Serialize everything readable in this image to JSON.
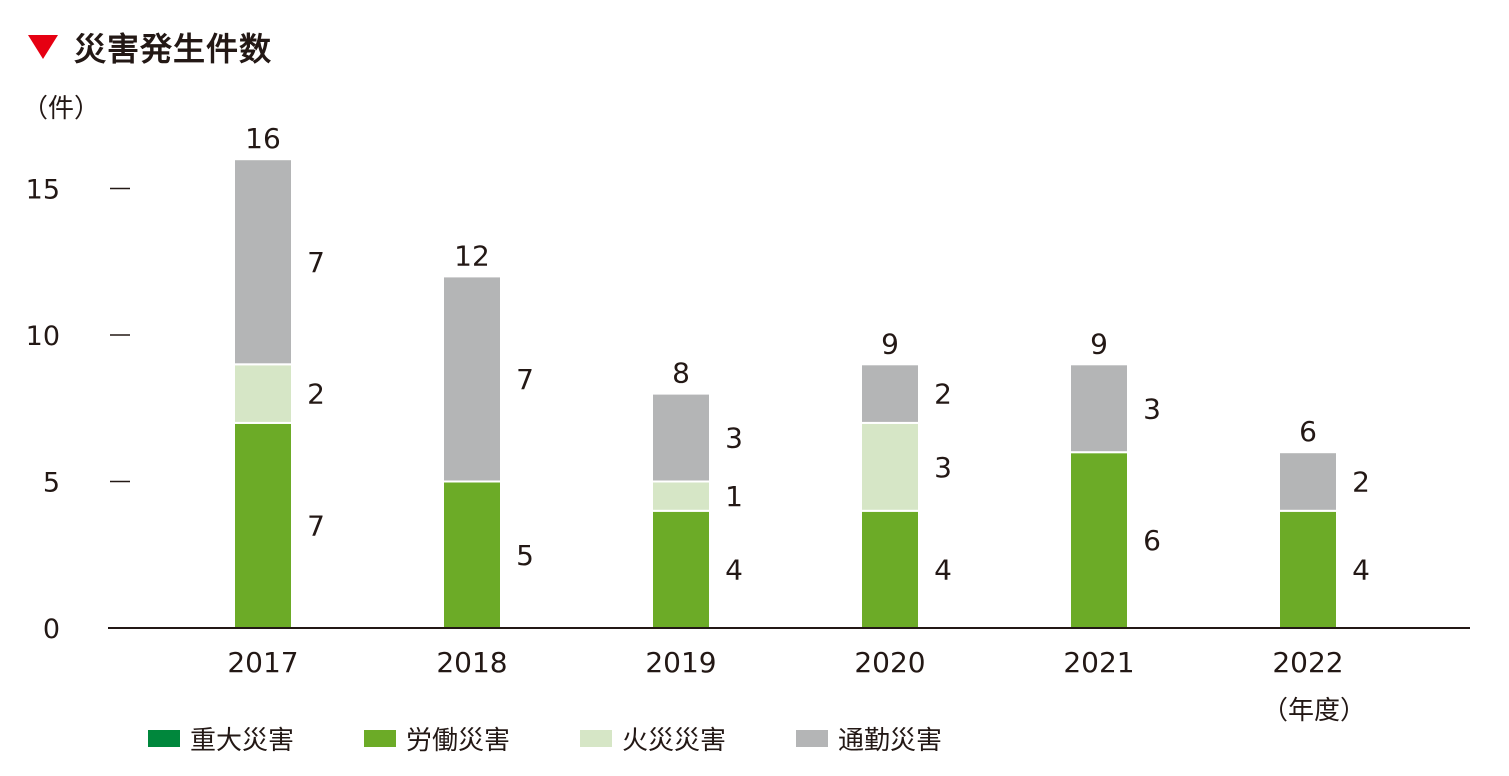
{
  "title": "災害発生件数",
  "y_unit": "（件）",
  "x_unit": "（年度）",
  "colors": {
    "title_marker": "#e60012",
    "重大災害": "#00873c",
    "労働災害": "#6cab27",
    "火災災害": "#d6e6c6",
    "通勤災害": "#b4b5b6"
  },
  "chart_data": {
    "type": "bar",
    "stacked": true,
    "categories": [
      "2017",
      "2018",
      "2019",
      "2020",
      "2021",
      "2022"
    ],
    "series": [
      {
        "name": "重大災害",
        "values": [
          0,
          0,
          0,
          0,
          0,
          0
        ]
      },
      {
        "name": "労働災害",
        "values": [
          7,
          5,
          4,
          4,
          6,
          4
        ]
      },
      {
        "name": "火災災害",
        "values": [
          2,
          0,
          1,
          3,
          0,
          0
        ]
      },
      {
        "name": "通勤災害",
        "values": [
          7,
          7,
          3,
          2,
          3,
          2
        ]
      }
    ],
    "totals": [
      16,
      12,
      8,
      9,
      9,
      6
    ],
    "ylim": [
      0,
      16
    ],
    "yticks": [
      0,
      5,
      10,
      15
    ],
    "legend_position": "bottom"
  }
}
